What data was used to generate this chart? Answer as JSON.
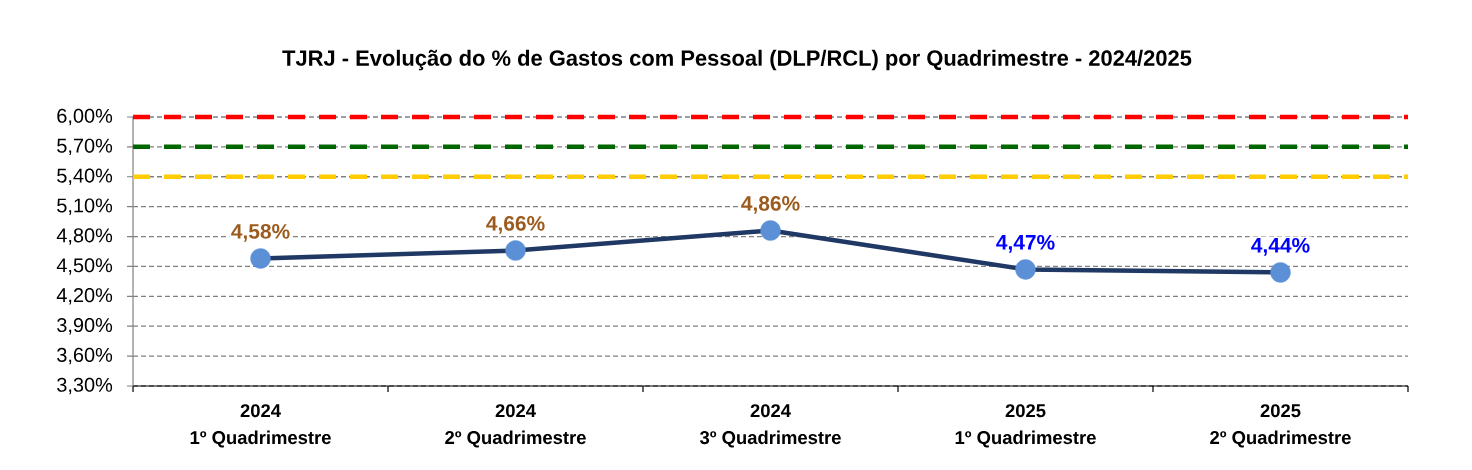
{
  "chart_data": {
    "type": "line",
    "title": "TJRJ - Evolução do % de Gastos com Pessoal (DLP/RCL) por Quadrimestre - 2024/2025",
    "categories": [
      "2024\n1º Quadrimestre",
      "2024\n2º Quadrimestre",
      "2024\n3º Quadrimestre",
      "2025\n1º Quadrimestre",
      "2025\n2º Quadrimestre"
    ],
    "series": [
      {
        "color": "#1f3864",
        "colors": [
          "#5b8fd6",
          "#5b8fd6",
          "#5b8fd6",
          "#5b8fd6",
          "#5b8fd6"
        ],
        "values": [
          4.58,
          4.66,
          4.86,
          4.47,
          4.44
        ],
        "value_labels": [
          "4,58%",
          "4,66%",
          "4,86%",
          "4,47%",
          "4,44%"
        ]
      }
    ],
    "ylim": [
      3.3,
      6.0
    ],
    "yticks": [
      {
        "value": 3.3,
        "label": "3,30%"
      },
      {
        "value": 3.6,
        "label": "3,60%"
      },
      {
        "value": 3.9,
        "label": "3,90%"
      },
      {
        "value": 4.2,
        "label": "4,20%"
      },
      {
        "value": 4.5,
        "label": "4,50%"
      },
      {
        "value": 4.8,
        "label": "4,80%"
      },
      {
        "value": 5.1,
        "label": "5,10%"
      },
      {
        "value": 5.4,
        "label": "5,40%"
      },
      {
        "value": 5.7,
        "label": "5,70%"
      },
      {
        "value": 6.0,
        "label": "6,00%"
      }
    ],
    "ref_lines": [
      {
        "axis": "y",
        "value": 6.0,
        "color": "#ff0000",
        "line_style": "dashed"
      },
      {
        "axis": "y",
        "value": 5.7,
        "color": "#006600",
        "line_style": "dashed"
      },
      {
        "axis": "y",
        "value": 5.4,
        "color": "#ffcc00",
        "line_style": "dashed"
      }
    ],
    "grid": "y",
    "marker": "circle",
    "line_style": "solid"
  }
}
